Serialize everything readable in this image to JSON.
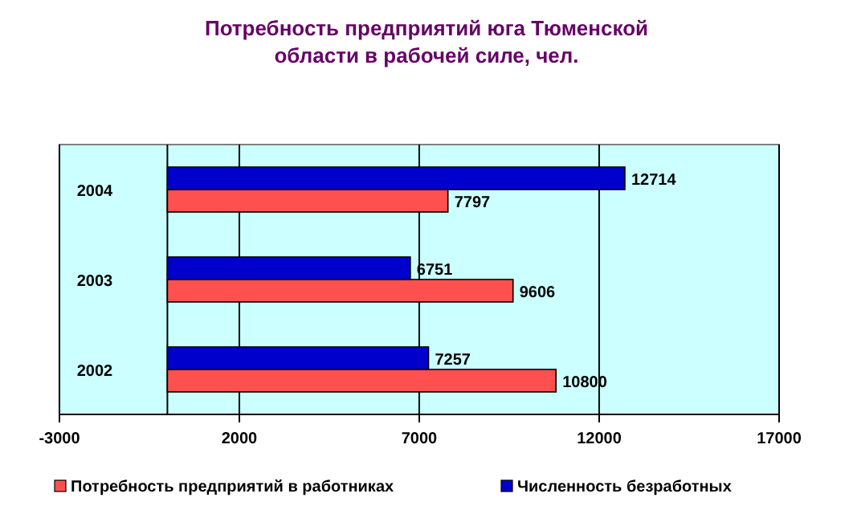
{
  "chart_data": {
    "type": "bar",
    "orientation": "horizontal",
    "title": "Потребность предприятий юга Тюменской области в рабочей силе, чел.",
    "categories": [
      "2004",
      "2003",
      "2002"
    ],
    "series": [
      {
        "name": "Потребность предприятий в работниках",
        "color": "#ff5050",
        "values": [
          7797,
          9606,
          10800
        ]
      },
      {
        "name": "Численность безработных",
        "color": "#0000cc",
        "values": [
          12714,
          6751,
          7257
        ]
      }
    ],
    "xlim": [
      -3000,
      17000
    ],
    "xticks": [
      -3000,
      2000,
      7000,
      12000,
      17000
    ],
    "grid": "x",
    "legend": "bottom",
    "data_labels": true
  }
}
